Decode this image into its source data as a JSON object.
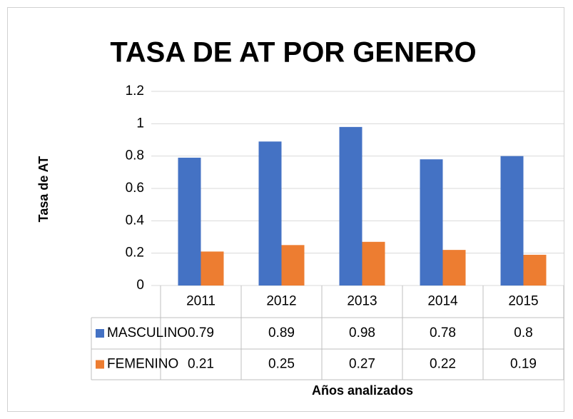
{
  "chart_data": {
    "type": "bar",
    "title": "TASA DE AT POR GENERO",
    "y_label": "Tasa de AT",
    "x_label": "Años analizados",
    "categories": [
      "2011",
      "2012",
      "2013",
      "2014",
      "2015"
    ],
    "series": [
      {
        "name": "MASCULINO",
        "color": "#4472c4",
        "values": [
          0.79,
          0.89,
          0.98,
          0.78,
          0.8
        ]
      },
      {
        "name": "FEMENINO",
        "color": "#ed7d31",
        "values": [
          0.21,
          0.25,
          0.27,
          0.22,
          0.19
        ]
      }
    ],
    "ylim": [
      0,
      1.2
    ],
    "yticks": [
      0,
      0.2,
      0.4,
      0.6,
      0.8,
      1,
      1.2
    ],
    "grid": true,
    "data_table": true
  }
}
